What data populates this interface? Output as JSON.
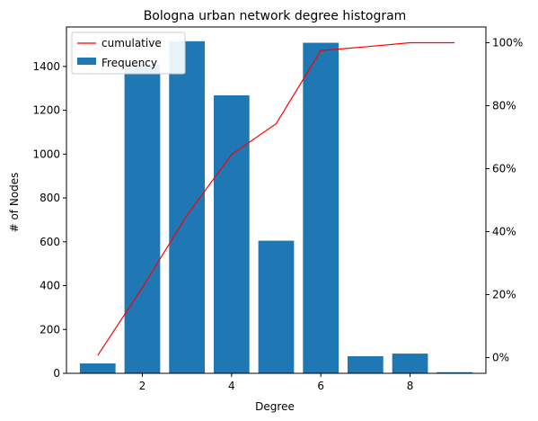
{
  "chart_data": {
    "type": "bar",
    "title": "Bologna urban network degree histogram",
    "xlabel": "Degree",
    "ylabel": "# of Nodes",
    "x": [
      1,
      2,
      3,
      4,
      5,
      6,
      7,
      8,
      9
    ],
    "xlim": [
      0.3,
      9.7
    ],
    "ylim": [
      0,
      1580
    ],
    "xticks": [
      2,
      4,
      6,
      8
    ],
    "yticks": [
      0,
      200,
      400,
      600,
      800,
      1000,
      1200,
      1400
    ],
    "y2lim": [
      -0.05,
      1.05
    ],
    "y2ticks": [
      0,
      0.2,
      0.4,
      0.6,
      0.8,
      1.0
    ],
    "y2ticklabels": [
      "0%",
      "20%",
      "40%",
      "60%",
      "80%",
      "100%"
    ],
    "grid": false,
    "legend_position": "top-left",
    "series": [
      {
        "name": "Frequency",
        "type": "bar",
        "axis": "left",
        "color": "#1f77b4",
        "values": [
          45,
          1410,
          1515,
          1268,
          605,
          1508,
          78,
          90,
          5
        ]
      },
      {
        "name": "cumulative",
        "type": "line",
        "axis": "right",
        "color": "#ff0000",
        "values": [
          0.007,
          0.222,
          0.452,
          0.645,
          0.743,
          0.975,
          0.987,
          1.0,
          1.0
        ]
      }
    ]
  }
}
